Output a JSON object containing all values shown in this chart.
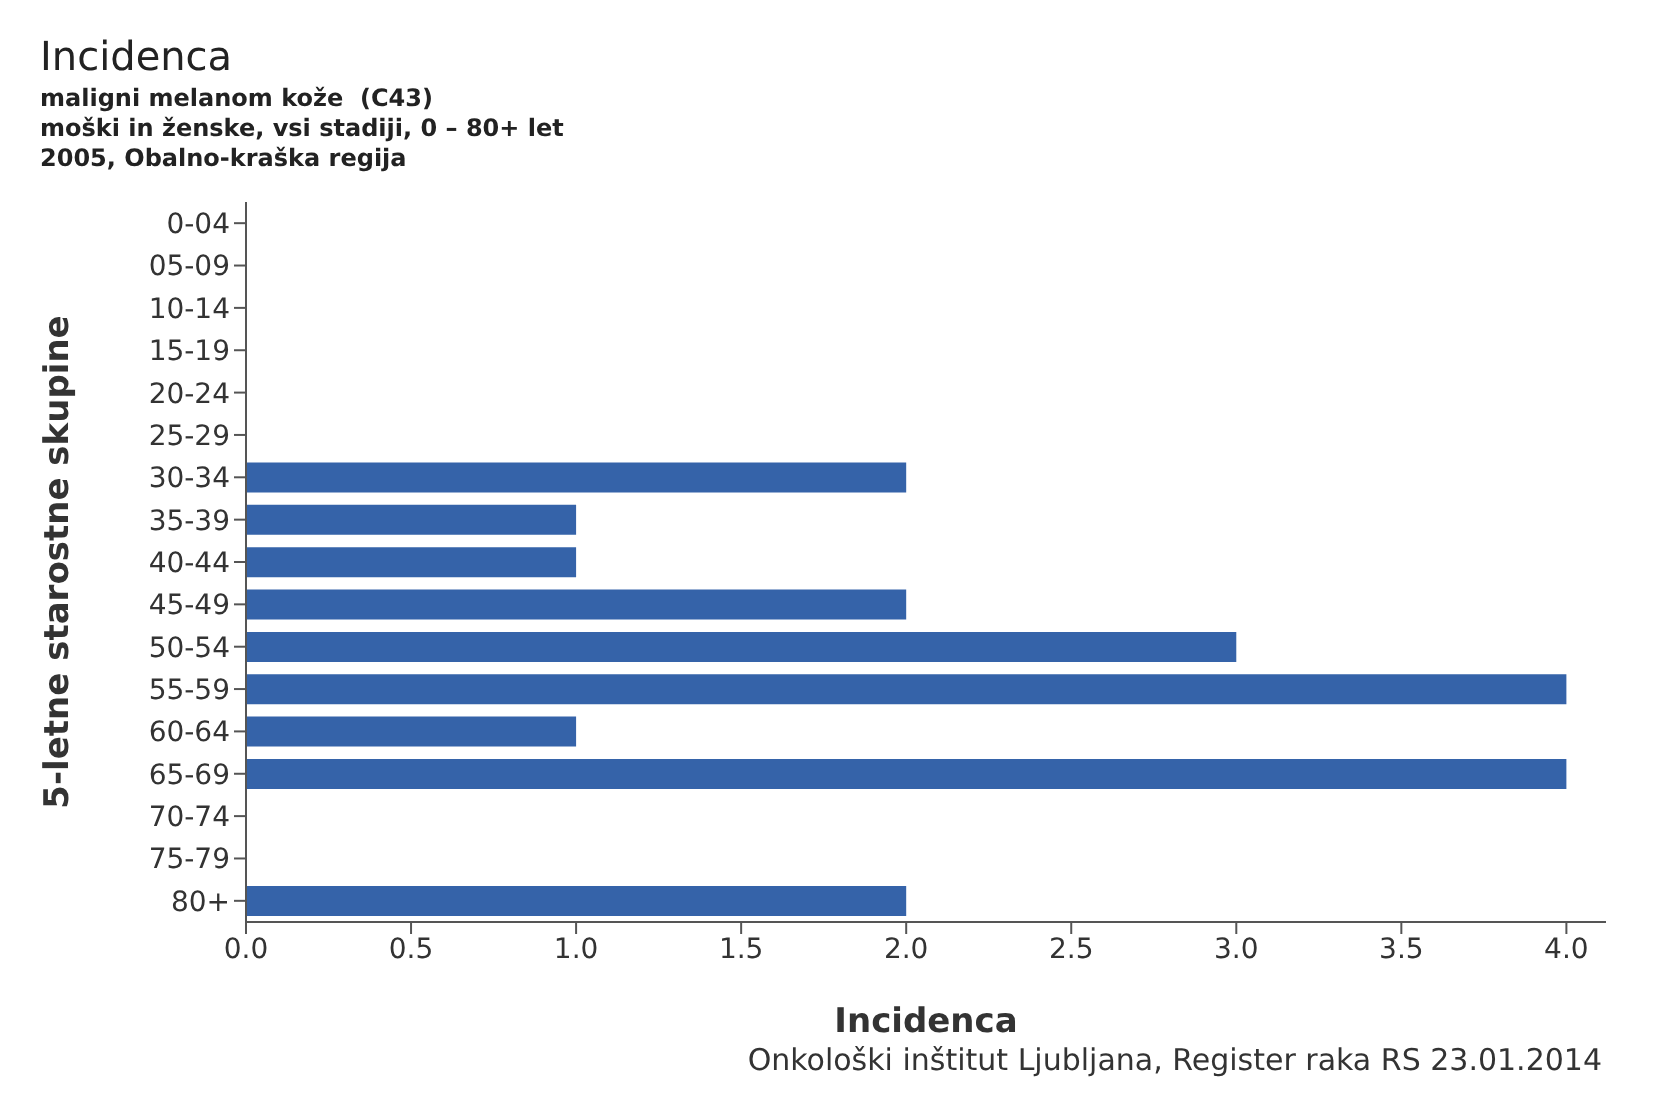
{
  "chart_data": {
    "type": "bar",
    "orientation": "horizontal",
    "title": "Incidenca",
    "subtitle": "maligni melanom kože  (C43)\nmoški in ženske, vsi stadiji, 0 – 80+ let\n2005, Obalno-kraška regija",
    "xlabel": "Incidenca",
    "ylabel": "5-letne starostne skupine",
    "categories": [
      "0-04",
      "05-09",
      "10-14",
      "15-19",
      "20-24",
      "25-29",
      "30-34",
      "35-39",
      "40-44",
      "45-49",
      "50-54",
      "55-59",
      "60-64",
      "65-69",
      "70-74",
      "75-79",
      "80+"
    ],
    "values": [
      0,
      0,
      0,
      0,
      0,
      0,
      2,
      1,
      1,
      2,
      3,
      4,
      1,
      4,
      0,
      0,
      2
    ],
    "color": "#3563a9",
    "xlim": [
      0,
      4.12
    ],
    "xticks": [
      {
        "value": 0,
        "label": "0.0"
      },
      {
        "value": 0.5,
        "label": "0.5"
      },
      {
        "value": 1,
        "label": "1.0"
      },
      {
        "value": 1.5,
        "label": "1.5"
      },
      {
        "value": 2,
        "label": "2.0"
      },
      {
        "value": 2.5,
        "label": "2.5"
      },
      {
        "value": 3,
        "label": "3.0"
      },
      {
        "value": 3.5,
        "label": "3.5"
      },
      {
        "value": 4,
        "label": "4.0"
      }
    ],
    "legend": false,
    "annotations": [
      "Onkološki inštitut Ljubljana, Register raka RS 23.01.2014"
    ]
  }
}
